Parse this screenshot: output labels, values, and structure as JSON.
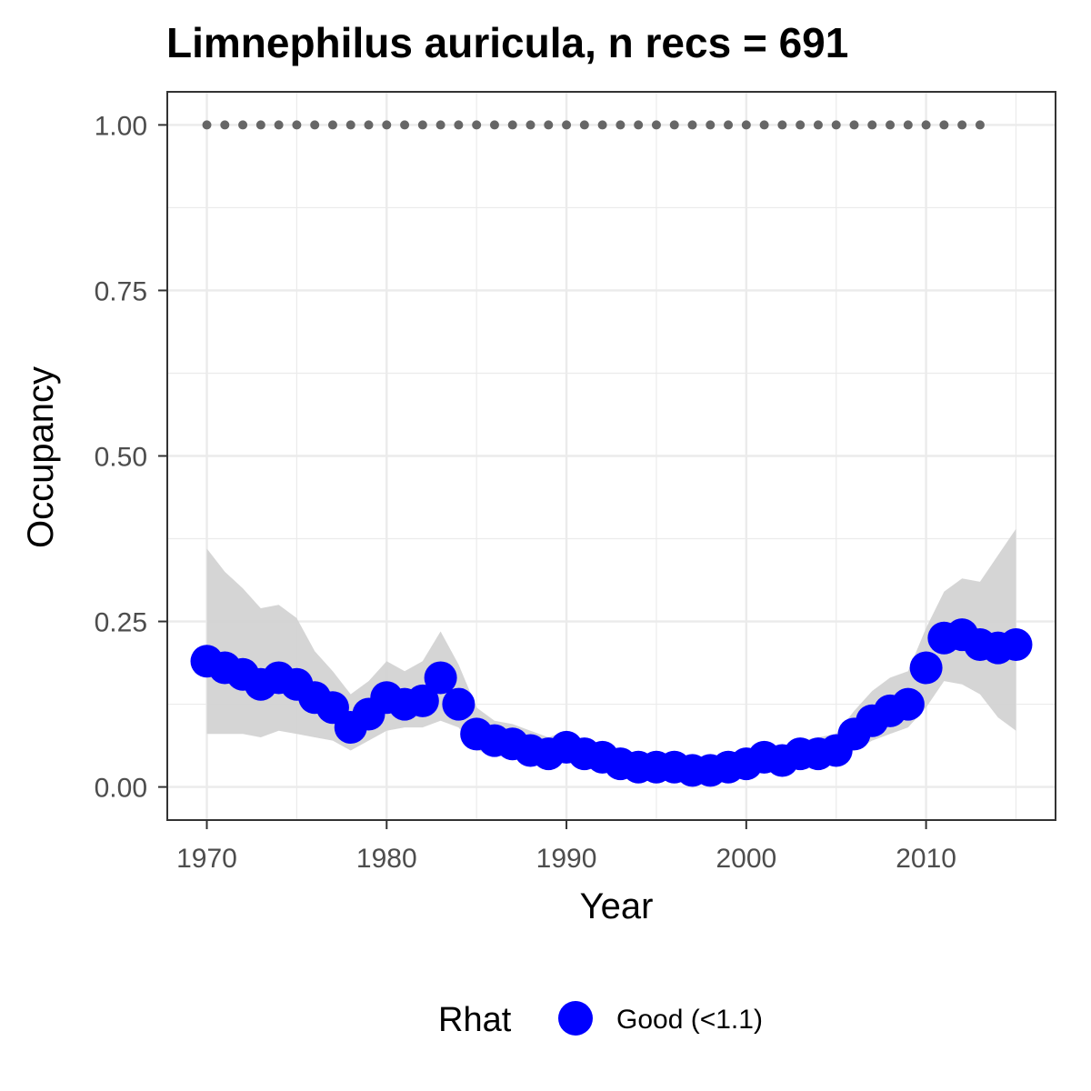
{
  "chart_data": {
    "type": "line",
    "title": "Limnephilus auricula, n recs = 691",
    "xlabel": "Year",
    "ylabel": "Occupancy",
    "xlim": [
      1967.8,
      2017.2
    ],
    "ylim": [
      -0.05,
      1.05
    ],
    "x_ticks": [
      1970,
      1980,
      1990,
      2000,
      2010
    ],
    "x_tick_labels": [
      "1970",
      "1980",
      "1990",
      "2000",
      "2010"
    ],
    "y_ticks": [
      0,
      0.25,
      0.5,
      0.75,
      1.0
    ],
    "y_tick_labels": [
      "0.00",
      "0.25",
      "0.50",
      "0.75",
      "1.00"
    ],
    "grid": true,
    "legend": {
      "position": "bottom",
      "title": "Rhat",
      "entries": [
        {
          "label": "Good (<1.1)",
          "color": "#0000ff"
        }
      ]
    },
    "colors": {
      "points": "#0000ff",
      "ribbon": "#d3d3d3",
      "reference": "#666666",
      "panel_border": "#333333",
      "grid": "#ebebeb"
    },
    "series": [
      {
        "name": "Good (<1.1)",
        "x": [
          1970,
          1971,
          1972,
          1973,
          1974,
          1975,
          1976,
          1977,
          1978,
          1979,
          1980,
          1981,
          1982,
          1983,
          1984,
          1985,
          1986,
          1987,
          1988,
          1989,
          1990,
          1991,
          1992,
          1993,
          1994,
          1995,
          1996,
          1997,
          1998,
          1999,
          2000,
          2001,
          2002,
          2003,
          2004,
          2005,
          2006,
          2007,
          2008,
          2009,
          2010,
          2011,
          2012,
          2013,
          2014,
          2015
        ],
        "y": [
          0.19,
          0.18,
          0.17,
          0.155,
          0.165,
          0.155,
          0.135,
          0.12,
          0.09,
          0.11,
          0.135,
          0.125,
          0.13,
          0.165,
          0.125,
          0.08,
          0.07,
          0.065,
          0.055,
          0.05,
          0.06,
          0.05,
          0.045,
          0.035,
          0.03,
          0.03,
          0.03,
          0.025,
          0.025,
          0.03,
          0.035,
          0.045,
          0.04,
          0.05,
          0.05,
          0.055,
          0.08,
          0.1,
          0.115,
          0.125,
          0.18,
          0.225,
          0.23,
          0.215,
          0.21,
          0.215
        ]
      }
    ],
    "ribbon": {
      "x": [
        1970,
        1971,
        1972,
        1973,
        1974,
        1975,
        1976,
        1977,
        1978,
        1979,
        1980,
        1981,
        1982,
        1983,
        1984,
        1985,
        1986,
        1987,
        1988,
        1989,
        1990,
        1991,
        1992,
        1993,
        1994,
        1995,
        1996,
        1997,
        1998,
        1999,
        2000,
        2001,
        2002,
        2003,
        2004,
        2005,
        2006,
        2007,
        2008,
        2009,
        2010,
        2011,
        2012,
        2013,
        2014,
        2015
      ],
      "lower": [
        0.08,
        0.08,
        0.08,
        0.075,
        0.085,
        0.08,
        0.075,
        0.07,
        0.055,
        0.07,
        0.085,
        0.09,
        0.09,
        0.1,
        0.09,
        0.055,
        0.05,
        0.045,
        0.04,
        0.035,
        0.04,
        0.035,
        0.03,
        0.025,
        0.02,
        0.02,
        0.02,
        0.018,
        0.018,
        0.02,
        0.025,
        0.03,
        0.028,
        0.035,
        0.035,
        0.04,
        0.055,
        0.07,
        0.08,
        0.09,
        0.12,
        0.16,
        0.155,
        0.14,
        0.105,
        0.085
      ],
      "upper": [
        0.36,
        0.325,
        0.3,
        0.27,
        0.275,
        0.255,
        0.205,
        0.175,
        0.14,
        0.16,
        0.19,
        0.175,
        0.19,
        0.235,
        0.185,
        0.12,
        0.1,
        0.095,
        0.085,
        0.075,
        0.085,
        0.07,
        0.065,
        0.05,
        0.045,
        0.045,
        0.04,
        0.035,
        0.035,
        0.04,
        0.045,
        0.06,
        0.055,
        0.07,
        0.075,
        0.08,
        0.115,
        0.145,
        0.165,
        0.175,
        0.24,
        0.295,
        0.315,
        0.31,
        0.35,
        0.39
      ]
    },
    "reference": {
      "x": [
        1970,
        1971,
        1972,
        1973,
        1974,
        1975,
        1976,
        1977,
        1978,
        1979,
        1980,
        1981,
        1982,
        1983,
        1984,
        1985,
        1986,
        1987,
        1988,
        1989,
        1990,
        1991,
        1992,
        1993,
        1994,
        1995,
        1996,
        1997,
        1998,
        1999,
        2000,
        2001,
        2002,
        2003,
        2004,
        2005,
        2006,
        2007,
        2008,
        2009,
        2010,
        2011,
        2012,
        2013
      ],
      "y": 1.0
    }
  }
}
